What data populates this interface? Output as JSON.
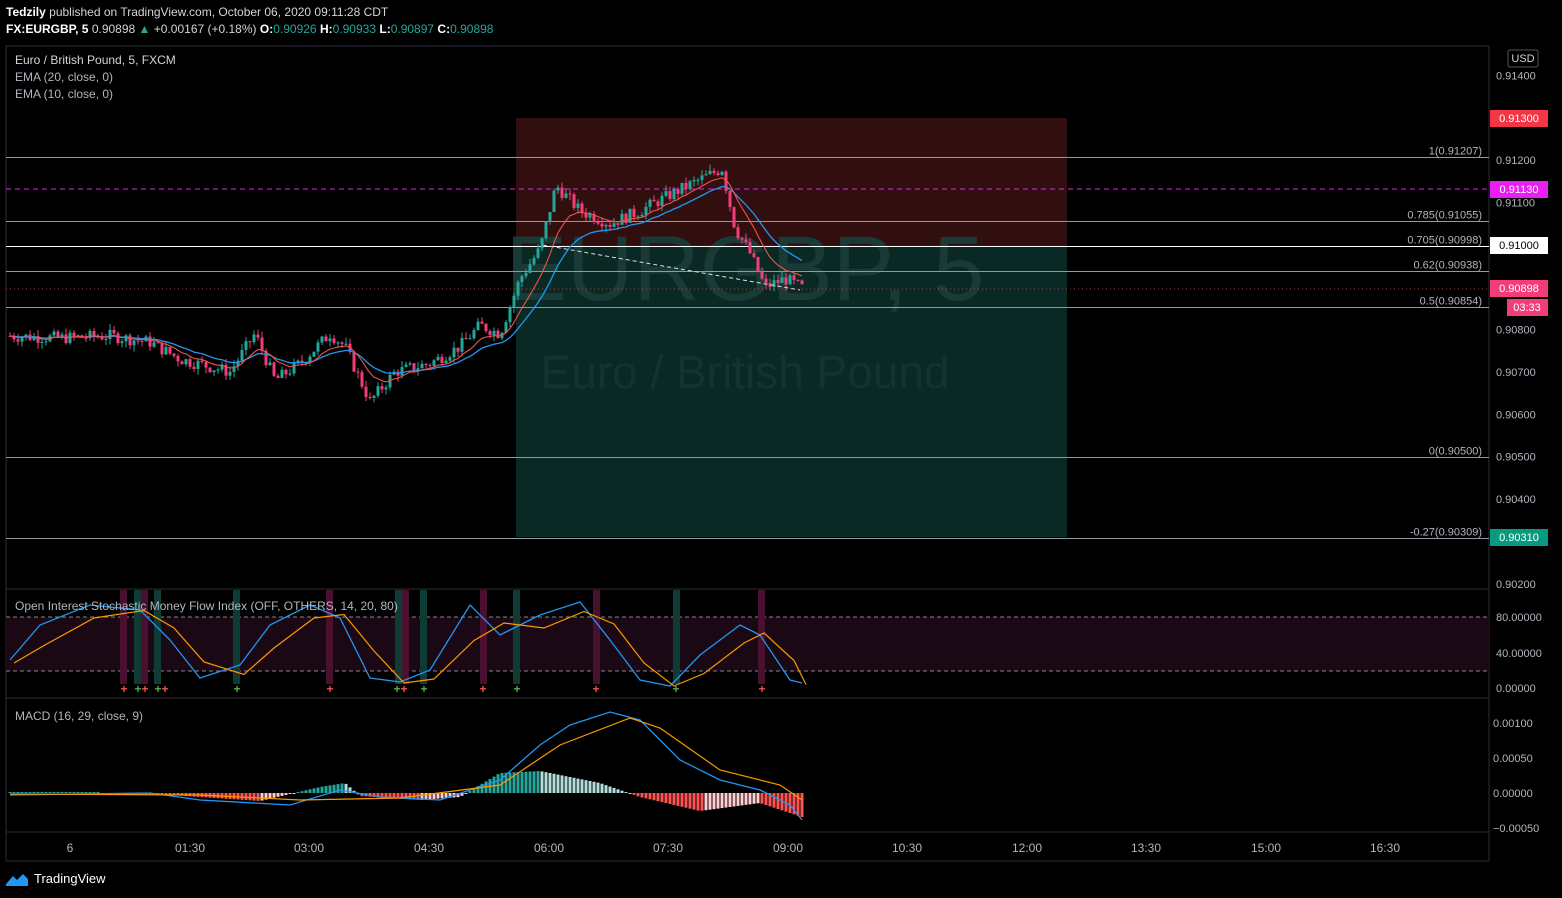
{
  "header": {
    "publisher": "Tedzily",
    "published_text": "published on TradingView.com, October 06, 2020 09:11:28 CDT",
    "symbol": "FX:EURGBP, 5",
    "last": "0.90898",
    "change": "+0.00167 (+0.18%)",
    "o_label": "O:",
    "o": "0.90926",
    "h_label": "H:",
    "h": "0.90933",
    "l_label": "L:",
    "l": "0.90897",
    "c_label": "C:",
    "c": "0.90898"
  },
  "legend": {
    "title": "Euro / British Pound, 5, FXCM",
    "ema20": "EMA (20, close, 0)",
    "ema10": "EMA (10, close, 0)"
  },
  "watermark": {
    "symbol": "EURGBP, 5",
    "name": "Euro / British Pound"
  },
  "currency_button": "USD",
  "price_axis": [
    "0.91400",
    "0.91200",
    "0.91100",
    "0.90800",
    "0.90700",
    "0.90600",
    "0.90500",
    "0.90400",
    "0.90200"
  ],
  "price_tags": {
    "stop": "0.91300",
    "alert": "0.91130",
    "level": "0.91000",
    "last": "0.90898",
    "countdown": "03:33",
    "target": "0.90310"
  },
  "fib_levels": [
    {
      "label": "1(0.91207)",
      "price": 0.91207
    },
    {
      "label": "0.785(0.91055)",
      "price": 0.91055
    },
    {
      "label": "0.705(0.90998)",
      "price": 0.90998
    },
    {
      "label": "0.62(0.90938)",
      "price": 0.90938
    },
    {
      "label": "0.5(0.90854)",
      "price": 0.90854
    },
    {
      "label": "0(0.90500)",
      "price": 0.905
    },
    {
      "label": "-0.27(0.90309)",
      "price": 0.90309
    }
  ],
  "osc": {
    "title": "Open Interest Stochastic Money Flow Index (OFF, OTHERS, 14, 20, 80)",
    "axis": [
      "80.00000",
      "40.00000",
      "0.00000"
    ]
  },
  "macd": {
    "title": "MACD (16, 29, close, 9)",
    "axis": [
      "0.00100",
      "0.00050",
      "0.00000",
      "−0.00050"
    ]
  },
  "time_axis": [
    "6",
    "01:30",
    "03:00",
    "04:30",
    "06:00",
    "07:30",
    "09:00",
    "10:30",
    "12:00",
    "13:30",
    "15:00",
    "16:30"
  ],
  "brand": "TradingView",
  "colors": {
    "up": "#26a69a",
    "down": "#ef5350",
    "candle_down": "#f23d78",
    "ema20": "#2962ff",
    "ema10": "#ef5350",
    "magenta": "#e91ef2"
  }
}
